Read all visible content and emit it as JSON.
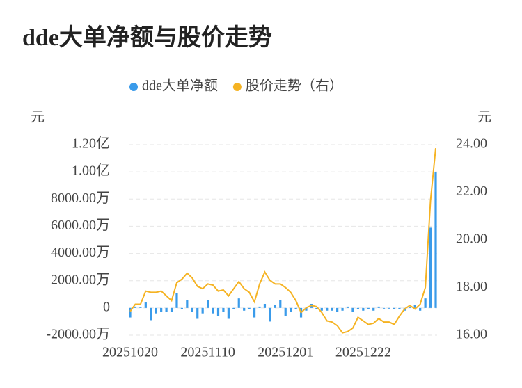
{
  "chart_data": {
    "type": "combo",
    "title": "dde大单净额与股价走势",
    "y_label": "元",
    "y2_label": "元",
    "categories": [
      "20251020",
      null,
      null,
      null,
      null,
      null,
      null,
      null,
      null,
      null,
      null,
      null,
      null,
      null,
      null,
      "20251110",
      null,
      null,
      null,
      null,
      null,
      null,
      null,
      null,
      null,
      null,
      null,
      null,
      null,
      null,
      "20251201",
      null,
      null,
      null,
      null,
      null,
      null,
      null,
      null,
      null,
      null,
      null,
      null,
      null,
      null,
      "20251222",
      null,
      null,
      null,
      null,
      null,
      null,
      null,
      null,
      null,
      null,
      null,
      null,
      null,
      null
    ],
    "ylim": [
      -2000,
      12000
    ],
    "yticks": [
      {
        "value": -2000,
        "label": "-2000.00万"
      },
      0,
      {
        "value": 2000,
        "label": "2000.00万"
      },
      {
        "value": 4000,
        "label": "4000.00万"
      },
      {
        "value": 6000,
        "label": "6000.00万"
      },
      {
        "value": 8000,
        "label": "8000.00万"
      },
      {
        "value": 10000,
        "label": "1.00亿"
      },
      {
        "value": 12000,
        "label": "1.20亿"
      }
    ],
    "y2lim": [
      16,
      24
    ],
    "y2ticks": [
      {
        "value": 16,
        "label": "16.00"
      },
      {
        "value": 18,
        "label": "18.00"
      },
      {
        "value": 20,
        "label": "20.00"
      },
      {
        "value": 22,
        "label": "22.00"
      },
      {
        "value": 24,
        "label": "24.00"
      }
    ],
    "grid": true,
    "legend": "top",
    "series": [
      {
        "name": "dde大单净额",
        "type": "bar",
        "color": "#3a9bea",
        "values": [
          -700,
          100,
          50,
          400,
          -900,
          -400,
          -300,
          -300,
          -300,
          1100,
          -100,
          600,
          -300,
          -800,
          -400,
          600,
          -400,
          -600,
          -300,
          -800,
          -100,
          700,
          -200,
          -100,
          -700,
          100,
          300,
          -1000,
          200,
          600,
          -600,
          -300,
          -100,
          -700,
          -200,
          300,
          -100,
          -200,
          -200,
          -200,
          -300,
          -200,
          100,
          -300,
          -100,
          -200,
          -100,
          -200,
          100,
          -50,
          -50,
          -100,
          -100,
          -200,
          100,
          200,
          -200,
          700,
          5900,
          10000
        ]
      },
      {
        "name": "股价走势（右）",
        "type": "line",
        "axis": "y2",
        "color": "#f5b323",
        "values": [
          17.0,
          17.3,
          17.3,
          17.85,
          17.8,
          17.8,
          17.85,
          17.65,
          17.45,
          18.2,
          18.35,
          18.6,
          18.4,
          18.05,
          17.95,
          18.15,
          18.1,
          17.85,
          17.9,
          17.65,
          17.95,
          18.25,
          17.95,
          17.8,
          17.4,
          18.15,
          18.65,
          18.3,
          18.15,
          18.15,
          18.0,
          17.8,
          17.45,
          16.95,
          17.15,
          17.25,
          17.2,
          16.95,
          16.6,
          16.55,
          16.4,
          16.1,
          16.15,
          16.3,
          16.75,
          16.6,
          16.45,
          16.5,
          16.7,
          16.55,
          16.55,
          16.45,
          16.8,
          17.1,
          17.25,
          17.1,
          17.3,
          18.0,
          21.65,
          23.85
        ]
      }
    ]
  }
}
